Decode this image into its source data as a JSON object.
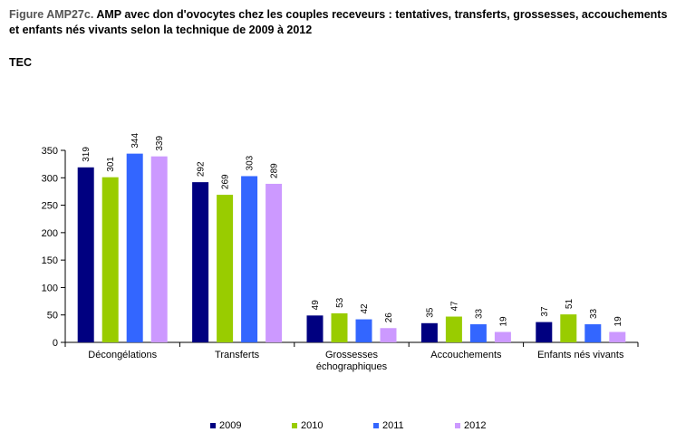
{
  "title": {
    "prefix": "Figure AMP27c.",
    "text": " AMP avec don d'ovocytes chez les couples receveurs : tentatives, transferts, grossesses, accouchements et enfants nés vivants selon la technique de 2009 à 2012"
  },
  "subtitle": "TEC",
  "colors": {
    "2009": "#000080",
    "2010": "#99CC00",
    "2011": "#3366FF",
    "2012": "#CC99FF"
  },
  "chart_data": {
    "type": "bar",
    "categories": [
      "Décongélations",
      "Transferts",
      "Grossesses échographiques",
      "Accouchements",
      "Enfants nés vivants"
    ],
    "category_lines": [
      [
        "Décongélations"
      ],
      [
        "Transferts"
      ],
      [
        "Grossesses",
        "échographiques"
      ],
      [
        "Accouchements"
      ],
      [
        "Enfants nés vivants"
      ]
    ],
    "series": [
      {
        "name": "2009",
        "values": [
          319,
          292,
          49,
          35,
          37
        ]
      },
      {
        "name": "2010",
        "values": [
          301,
          269,
          53,
          47,
          51
        ]
      },
      {
        "name": "2011",
        "values": [
          344,
          303,
          42,
          33,
          33
        ]
      },
      {
        "name": "2012",
        "values": [
          339,
          289,
          26,
          19,
          19
        ]
      }
    ],
    "yticks": [
      0,
      50,
      100,
      150,
      200,
      250,
      300,
      350
    ],
    "ylim": [
      0,
      350
    ],
    "grid": false,
    "legend_position": "bottom"
  }
}
